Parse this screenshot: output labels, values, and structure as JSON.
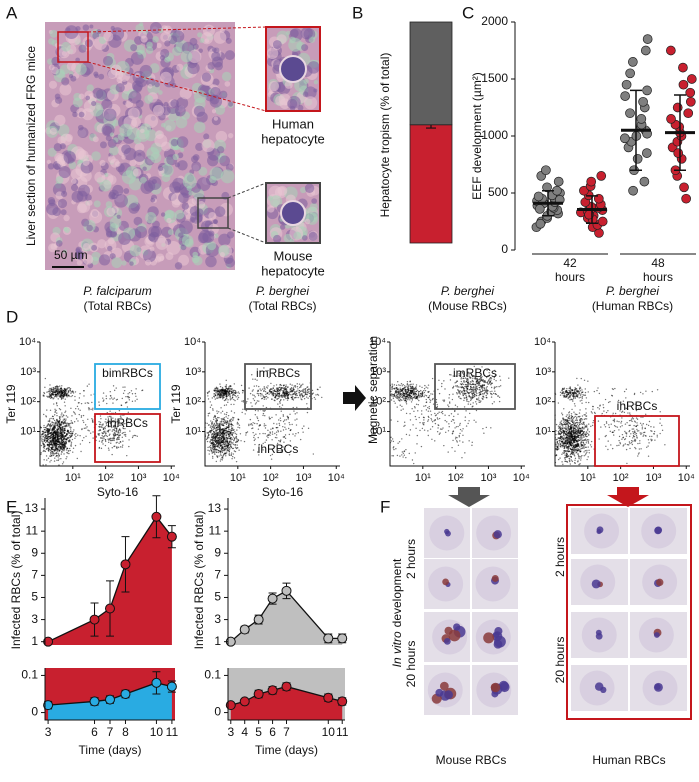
{
  "panel_labels": [
    "A",
    "B",
    "C",
    "D",
    "E",
    "F"
  ],
  "panel_a": {
    "side_label": "Liver section of humanized FRG mice",
    "scale_bar": "50 µm",
    "human_label": [
      "Human",
      "hepatocyte"
    ],
    "mouse_label": [
      "Mouse",
      "hepatocyte"
    ],
    "human_color": "#c4161c"
  },
  "chart_data": [
    {
      "type": "stacked_bar",
      "ylabel": "Hepatocyte tropism (% of total)",
      "ylim": [
        0,
        100
      ],
      "series": [
        {
          "color": "#c8202f",
          "values": [
            53.5
          ],
          "error": [
            1.5
          ]
        },
        {
          "color": "#5f5f5f",
          "values": [
            46.5
          ]
        }
      ]
    },
    {
      "type": "strip",
      "ylabel": "EEF development (µm²)",
      "ylim": [
        0,
        2000
      ],
      "yticks": [
        0,
        500,
        1000,
        1500,
        2000
      ],
      "categories": [
        "42",
        "48"
      ],
      "x_unit": "hours",
      "series": [
        {
          "color": "#7f7f7f",
          "mean": [
            410,
            1050
          ],
          "sd": [
            110,
            350
          ],
          "values": [
            [
              250,
              280,
              300,
              320,
              340,
              350,
              370,
              380,
              390,
              400,
              410,
              420,
              430,
              450,
              460,
              480,
              500,
              520,
              550,
              600,
              650,
              700,
              200,
              230,
              360,
              440,
              470
            ],
            [
              520,
              600,
              700,
              800,
              850,
              900,
              950,
              1000,
              1050,
              1080,
              1100,
              1150,
              1200,
              1250,
              1300,
              1350,
              1400,
              1450,
              1550,
              1650,
              1750,
              1850,
              980,
              1020
            ]
          ]
        },
        {
          "color": "#c8202f",
          "mean": [
            355,
            1030
          ],
          "sd": [
            120,
            330
          ],
          "values": [
            [
              150,
              200,
              220,
              250,
              280,
              300,
              320,
              330,
              340,
              350,
              360,
              370,
              380,
              400,
              420,
              450,
              480,
              520,
              560,
              600,
              650,
              270,
              310
            ],
            [
              450,
              550,
              650,
              700,
              800,
              900,
              950,
              1000,
              1030,
              1080,
              1100,
              1150,
              1200,
              1250,
              1300,
              1380,
              1450,
              1500,
              1600,
              1750,
              850
            ]
          ]
        }
      ]
    },
    {
      "type": "area_line",
      "ylabel": "Infected RBCs (% of total)",
      "xlabel": "Time (days)",
      "x": [
        3,
        6,
        7,
        8,
        10,
        11
      ],
      "xlim": [
        2.8,
        11.2
      ],
      "xticks": [
        3,
        6,
        7,
        8,
        10,
        11
      ],
      "ylim": [
        0.7,
        14
      ],
      "yticks": [
        1,
        3,
        5,
        7,
        9,
        11,
        13
      ],
      "y2lim": [
        -0.02,
        0.12
      ],
      "y2ticks": [
        0,
        0.1
      ],
      "series": [
        {
          "color": "#c8202f",
          "values": [
            1,
            3,
            4,
            8,
            12.3,
            10.5
          ],
          "error": [
            0.1,
            1.5,
            2.5,
            2.5,
            1.9,
            1
          ]
        },
        {
          "color": "#29abe2",
          "axis": "y2",
          "values": [
            0.02,
            0.03,
            0.035,
            0.05,
            0.08,
            0.07
          ],
          "error": [
            0.01,
            0.01,
            0.01,
            0.01,
            0.03,
            0.015
          ]
        }
      ]
    },
    {
      "type": "area_line",
      "ylabel": "Infected RBCs (% of total)",
      "xlabel": "Time (days)",
      "x": [
        3,
        4,
        5,
        6,
        7,
        10,
        11
      ],
      "xlim": [
        2.8,
        11.2
      ],
      "xticks": [
        3,
        4,
        5,
        6,
        7,
        10,
        11
      ],
      "ylim": [
        0.7,
        14
      ],
      "yticks": [
        1,
        3,
        5,
        7,
        9,
        11,
        13
      ],
      "y2lim": [
        -0.02,
        0.12
      ],
      "y2ticks": [
        0,
        0.1
      ],
      "series": [
        {
          "color": "#bfbfbf",
          "values": [
            1,
            2.1,
            3,
            4.9,
            5.6,
            1.3,
            1.3
          ],
          "error": [
            0.1,
            0.3,
            0.4,
            0.5,
            0.7,
            0.4,
            0.4
          ]
        },
        {
          "color": "#c8202f",
          "axis": "y2",
          "values": [
            0.02,
            0.03,
            0.05,
            0.06,
            0.07,
            0.04,
            0.03
          ],
          "error": [
            0.005,
            0.005,
            0.01,
            0.01,
            0.01,
            0.01,
            0.01
          ]
        }
      ]
    }
  ],
  "panel_d": {
    "separation_label": "Magnetic separation",
    "ylabel": "Ter 119",
    "xlabel": "Syto-16",
    "log": true,
    "xlim": [
      1,
      13000
    ],
    "ylim": [
      0.7,
      10000
    ],
    "ticks": [
      {
        "value": 10,
        "label": "10¹"
      },
      {
        "value": 100,
        "label": "10²"
      },
      {
        "value": 1000,
        "label": "10³"
      },
      {
        "value": 10000,
        "label": "10⁴"
      }
    ],
    "plots": [
      {
        "species": "P. falciparum",
        "population": "(Total RBCs)",
        "species_color": "#c4161c",
        "population_color": "#111111",
        "gates": [
          {
            "label": "bimRBCs",
            "color": "#29abe2"
          },
          {
            "label": "ihRBCs",
            "color": "#c4161c"
          }
        ]
      },
      {
        "species": "P. berghei",
        "population": "(Total RBCs)",
        "species_color": "#111111",
        "population_color": "#111111",
        "gates": [
          {
            "label": "imRBCs",
            "color": "#555555"
          },
          {
            "label": "ihRBCs",
            "color": "#c4161c"
          }
        ]
      },
      {
        "species": "P. berghei",
        "population": "(Mouse RBCs)",
        "species_color": "#111111",
        "population_color": "#111111",
        "gates": [
          {
            "label": "imRBCs",
            "color": "#555555"
          }
        ]
      },
      {
        "species": "P. berghei",
        "population": "(Human RBCs)",
        "species_color": "#111111",
        "population_color": "#c4161c",
        "gates": [
          {
            "label": "ihRBCs",
            "color": "#c4161c"
          }
        ]
      }
    ]
  },
  "panel_f": {
    "side_label_italic": "In vitro",
    "side_label": "development",
    "timepoints": [
      "2 hours",
      "20 hours"
    ],
    "groups": [
      "Mouse RBCs",
      "Human RBCs"
    ],
    "group_colors": [
      "#111111",
      "#c4161c"
    ]
  }
}
